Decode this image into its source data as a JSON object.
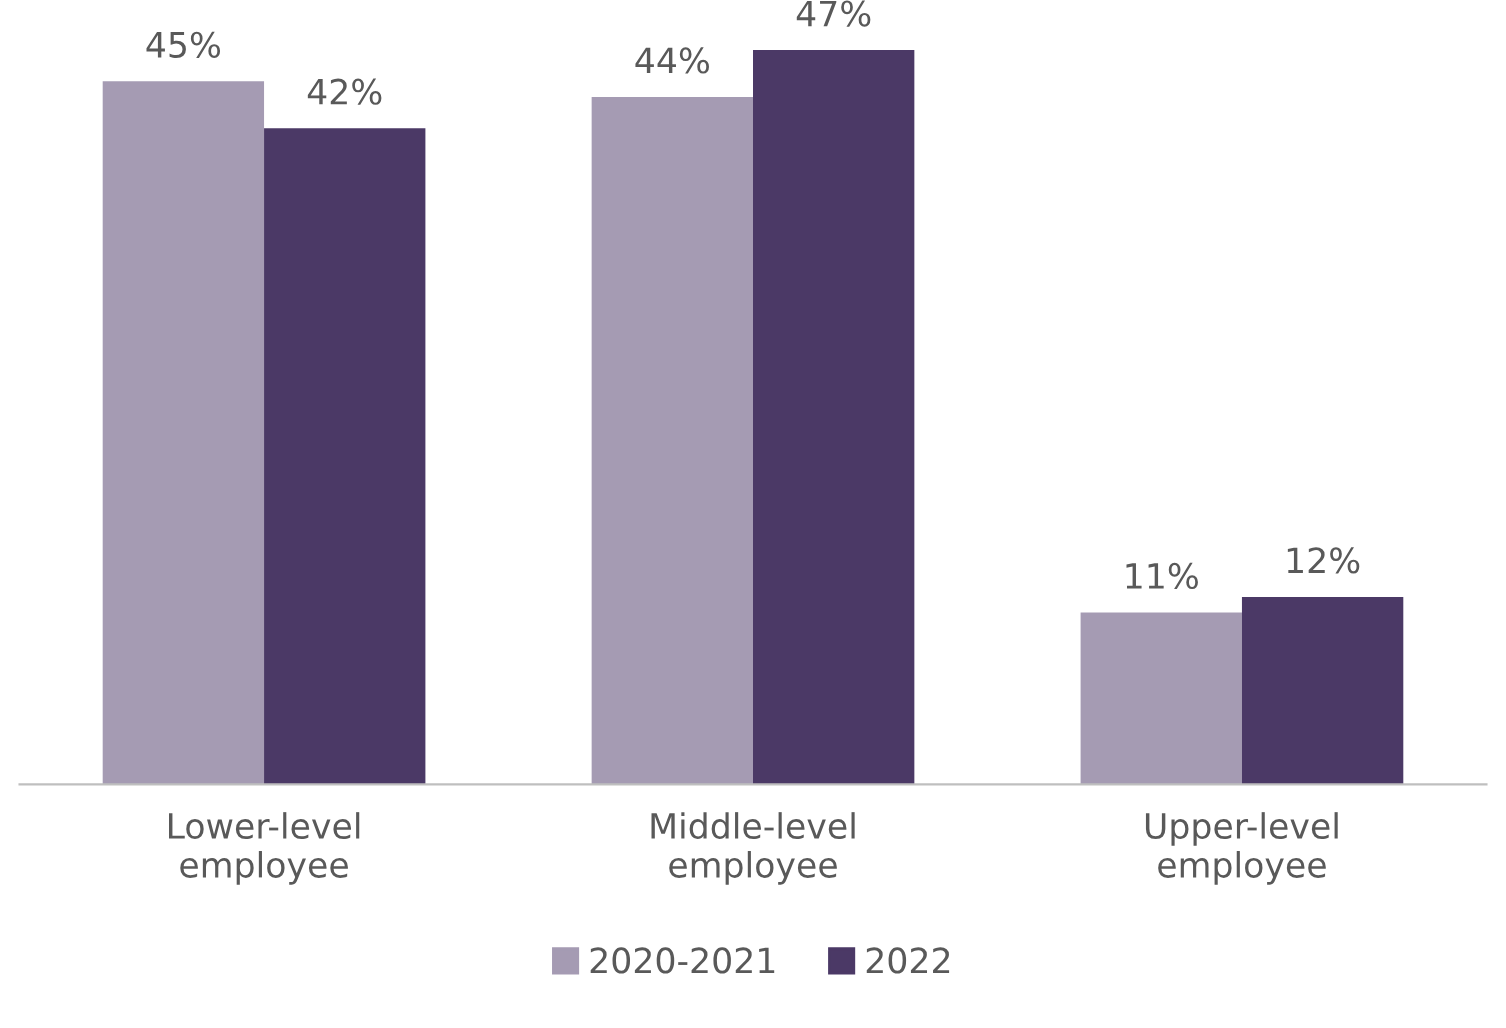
{
  "chart_data": {
    "type": "bar",
    "categories": [
      "Lower-level\nemployee",
      "Middle-level\nemployee",
      "Upper-level\nemployee"
    ],
    "series": [
      {
        "name": "2020-2021",
        "color": "#a59bb3",
        "values": [
          45,
          44,
          11
        ],
        "value_labels": [
          "45%",
          "44%",
          "11%"
        ]
      },
      {
        "name": "2022",
        "color": "#4b3966",
        "values": [
          42,
          47,
          12
        ],
        "value_labels": [
          "42%",
          "47%",
          "12%"
        ]
      }
    ],
    "legend": "bottom",
    "grid": false
  }
}
